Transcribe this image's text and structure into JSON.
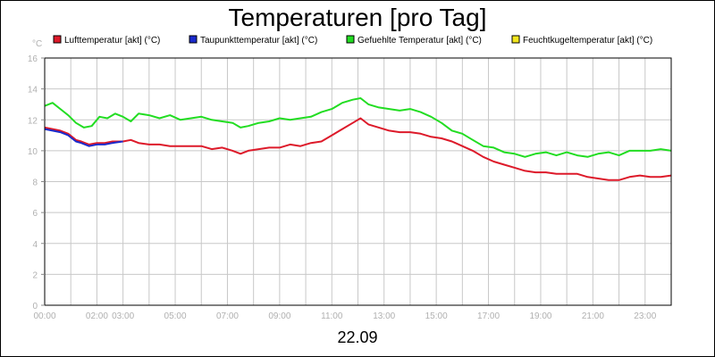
{
  "chart_data": {
    "type": "line",
    "title": "Temperaturen [pro Tag]",
    "ylabel": "°C",
    "xlabel": "22.09",
    "ylim": [
      0,
      16
    ],
    "y_ticks": [
      0,
      2,
      4,
      6,
      8,
      10,
      12,
      14,
      16
    ],
    "x_range": [
      0,
      24
    ],
    "x_ticks": [
      {
        "x": 0,
        "label": "00:00"
      },
      {
        "x": 2,
        "label": "02:00"
      },
      {
        "x": 3,
        "label": "03:00"
      },
      {
        "x": 5,
        "label": "05:00"
      },
      {
        "x": 7,
        "label": "07:00"
      },
      {
        "x": 9,
        "label": "09:00"
      },
      {
        "x": 11,
        "label": "11:00"
      },
      {
        "x": 13,
        "label": "13:00"
      },
      {
        "x": 15,
        "label": "15:00"
      },
      {
        "x": 17,
        "label": "17:00"
      },
      {
        "x": 19,
        "label": "19:00"
      },
      {
        "x": 21,
        "label": "21:00"
      },
      {
        "x": 23,
        "label": "23:00"
      }
    ],
    "grid": true,
    "legend_position": "top",
    "series": [
      {
        "name": "Lufttemperatur [akt] (°C)",
        "color": "#dd1a2a",
        "points": [
          [
            0,
            11.5
          ],
          [
            0.3,
            11.4
          ],
          [
            0.6,
            11.3
          ],
          [
            0.9,
            11.1
          ],
          [
            1.2,
            10.7
          ],
          [
            1.4,
            10.6
          ],
          [
            1.7,
            10.4
          ],
          [
            2.0,
            10.5
          ],
          [
            2.3,
            10.5
          ],
          [
            2.6,
            10.6
          ],
          [
            3.0,
            10.6
          ],
          [
            3.3,
            10.7
          ],
          [
            3.6,
            10.5
          ],
          [
            4.0,
            10.4
          ],
          [
            4.4,
            10.4
          ],
          [
            4.8,
            10.3
          ],
          [
            5.2,
            10.3
          ],
          [
            5.6,
            10.3
          ],
          [
            6.0,
            10.3
          ],
          [
            6.4,
            10.1
          ],
          [
            6.8,
            10.2
          ],
          [
            7.2,
            10.0
          ],
          [
            7.5,
            9.8
          ],
          [
            7.8,
            10.0
          ],
          [
            8.2,
            10.1
          ],
          [
            8.6,
            10.2
          ],
          [
            9.0,
            10.2
          ],
          [
            9.4,
            10.4
          ],
          [
            9.8,
            10.3
          ],
          [
            10.2,
            10.5
          ],
          [
            10.6,
            10.6
          ],
          [
            11.0,
            11.0
          ],
          [
            11.4,
            11.4
          ],
          [
            11.8,
            11.8
          ],
          [
            12.1,
            12.1
          ],
          [
            12.4,
            11.7
          ],
          [
            12.8,
            11.5
          ],
          [
            13.2,
            11.3
          ],
          [
            13.6,
            11.2
          ],
          [
            14.0,
            11.2
          ],
          [
            14.4,
            11.1
          ],
          [
            14.8,
            10.9
          ],
          [
            15.2,
            10.8
          ],
          [
            15.6,
            10.6
          ],
          [
            16.0,
            10.3
          ],
          [
            16.4,
            10.0
          ],
          [
            16.8,
            9.6
          ],
          [
            17.2,
            9.3
          ],
          [
            17.6,
            9.1
          ],
          [
            18.0,
            8.9
          ],
          [
            18.4,
            8.7
          ],
          [
            18.8,
            8.6
          ],
          [
            19.2,
            8.6
          ],
          [
            19.6,
            8.5
          ],
          [
            20.0,
            8.5
          ],
          [
            20.4,
            8.5
          ],
          [
            20.8,
            8.3
          ],
          [
            21.2,
            8.2
          ],
          [
            21.6,
            8.1
          ],
          [
            22.0,
            8.1
          ],
          [
            22.4,
            8.3
          ],
          [
            22.8,
            8.4
          ],
          [
            23.2,
            8.3
          ],
          [
            23.6,
            8.3
          ],
          [
            24.0,
            8.4
          ]
        ]
      },
      {
        "name": "Taupunkttemperatur [akt] (°C)",
        "color": "#1a2acc",
        "points": [
          [
            0,
            11.4
          ],
          [
            0.3,
            11.3
          ],
          [
            0.6,
            11.2
          ],
          [
            0.9,
            11.0
          ],
          [
            1.2,
            10.6
          ],
          [
            1.4,
            10.5
          ],
          [
            1.7,
            10.3
          ],
          [
            2.0,
            10.4
          ],
          [
            2.3,
            10.4
          ],
          [
            2.6,
            10.5
          ],
          [
            3.0,
            10.6
          ]
        ]
      },
      {
        "name": "Gefuehlte Temperatur [akt] (°C)",
        "color": "#22dd22",
        "points": [
          [
            0,
            12.9
          ],
          [
            0.3,
            13.1
          ],
          [
            0.6,
            12.7
          ],
          [
            0.9,
            12.3
          ],
          [
            1.2,
            11.8
          ],
          [
            1.5,
            11.5
          ],
          [
            1.8,
            11.6
          ],
          [
            2.1,
            12.2
          ],
          [
            2.4,
            12.1
          ],
          [
            2.7,
            12.4
          ],
          [
            3.0,
            12.2
          ],
          [
            3.3,
            11.9
          ],
          [
            3.6,
            12.4
          ],
          [
            4.0,
            12.3
          ],
          [
            4.4,
            12.1
          ],
          [
            4.8,
            12.3
          ],
          [
            5.2,
            12.0
          ],
          [
            5.6,
            12.1
          ],
          [
            6.0,
            12.2
          ],
          [
            6.4,
            12.0
          ],
          [
            6.8,
            11.9
          ],
          [
            7.2,
            11.8
          ],
          [
            7.5,
            11.5
          ],
          [
            7.8,
            11.6
          ],
          [
            8.2,
            11.8
          ],
          [
            8.6,
            11.9
          ],
          [
            9.0,
            12.1
          ],
          [
            9.4,
            12.0
          ],
          [
            9.8,
            12.1
          ],
          [
            10.2,
            12.2
          ],
          [
            10.6,
            12.5
          ],
          [
            11.0,
            12.7
          ],
          [
            11.4,
            13.1
          ],
          [
            11.8,
            13.3
          ],
          [
            12.1,
            13.4
          ],
          [
            12.4,
            13.0
          ],
          [
            12.8,
            12.8
          ],
          [
            13.2,
            12.7
          ],
          [
            13.6,
            12.6
          ],
          [
            14.0,
            12.7
          ],
          [
            14.4,
            12.5
          ],
          [
            14.8,
            12.2
          ],
          [
            15.2,
            11.8
          ],
          [
            15.6,
            11.3
          ],
          [
            16.0,
            11.1
          ],
          [
            16.4,
            10.7
          ],
          [
            16.8,
            10.3
          ],
          [
            17.2,
            10.2
          ],
          [
            17.6,
            9.9
          ],
          [
            18.0,
            9.8
          ],
          [
            18.4,
            9.6
          ],
          [
            18.8,
            9.8
          ],
          [
            19.2,
            9.9
          ],
          [
            19.6,
            9.7
          ],
          [
            20.0,
            9.9
          ],
          [
            20.4,
            9.7
          ],
          [
            20.8,
            9.6
          ],
          [
            21.2,
            9.8
          ],
          [
            21.6,
            9.9
          ],
          [
            22.0,
            9.7
          ],
          [
            22.4,
            10.0
          ],
          [
            22.8,
            10.0
          ],
          [
            23.2,
            10.0
          ],
          [
            23.6,
            10.1
          ],
          [
            24.0,
            10.0
          ]
        ]
      },
      {
        "name": "Feuchtkugeltemperatur [akt] (°C)",
        "color": "#f2e61e",
        "points": []
      }
    ]
  }
}
